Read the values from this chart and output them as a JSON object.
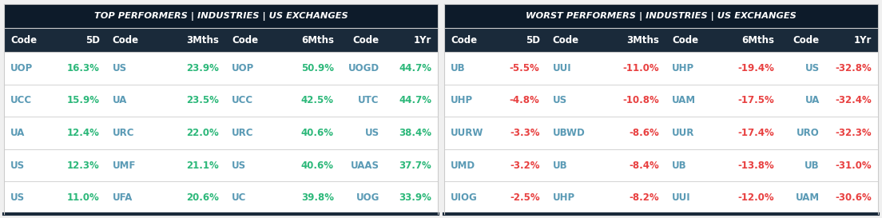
{
  "outer_bg": "#f0f0f0",
  "title_bg": "#0d1b2a",
  "col_header_bg": "#1a2a3a",
  "row_bg": "#ffffff",
  "separator_color": "#cccccc",
  "header_text_color": "#ffffff",
  "code_color_top": "#5a9ab5",
  "code_color_worst": "#5a9ab5",
  "positive_color": "#2db87a",
  "negative_color": "#e84040",
  "title_color": "#ffffff",
  "bottom_border_color": "#1a2a3a",
  "top_title": "TOP PERFORMERS | INDUSTRIES | US EXCHANGES",
  "worst_title": "WORST PERFORMERS | INDUSTRIES | US EXCHANGES",
  "top_data": [
    [
      "UOP",
      "16.3%",
      "US",
      "23.9%",
      "UOP",
      "50.9%",
      "UOGD",
      "44.7%"
    ],
    [
      "UCC",
      "15.9%",
      "UA",
      "23.5%",
      "UCC",
      "42.5%",
      "UTC",
      "44.7%"
    ],
    [
      "UA",
      "12.4%",
      "URC",
      "22.0%",
      "URC",
      "40.6%",
      "US",
      "38.4%"
    ],
    [
      "US",
      "12.3%",
      "UMF",
      "21.1%",
      "US",
      "40.6%",
      "UAAS",
      "37.7%"
    ],
    [
      "US",
      "11.0%",
      "UFA",
      "20.6%",
      "UC",
      "39.8%",
      "UOG",
      "33.9%"
    ]
  ],
  "worst_data": [
    [
      "UB",
      "-5.5%",
      "UUI",
      "-11.0%",
      "UHP",
      "-19.4%",
      "US",
      "-32.8%"
    ],
    [
      "UHP",
      "-4.8%",
      "US",
      "-10.8%",
      "UAM",
      "-17.5%",
      "UA",
      "-32.4%"
    ],
    [
      "UURW",
      "-3.3%",
      "UBWD",
      "-8.6%",
      "UUR",
      "-17.4%",
      "URO",
      "-32.3%"
    ],
    [
      "UMD",
      "-3.2%",
      "UB",
      "-8.4%",
      "UB",
      "-13.8%",
      "UB",
      "-31.0%"
    ],
    [
      "UIOG",
      "-2.5%",
      "UHP",
      "-8.2%",
      "UUI",
      "-12.0%",
      "UAM",
      "-30.6%"
    ]
  ],
  "col_headers": [
    "Code",
    "5D",
    "Code",
    "3Mths",
    "Code",
    "6Mths",
    "Code",
    "1Yr"
  ]
}
